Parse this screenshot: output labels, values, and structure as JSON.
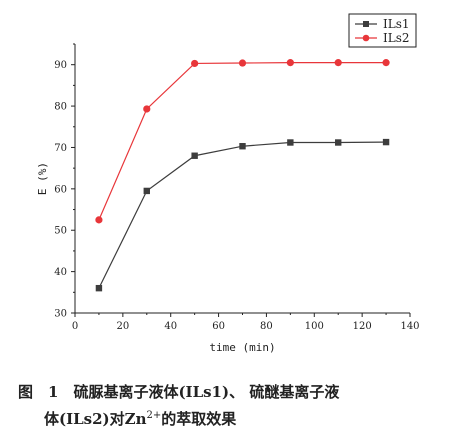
{
  "chart_data": {
    "type": "line",
    "xlabel": "time (min)",
    "ylabel": "E (%)",
    "xlim": [
      0,
      140
    ],
    "ylim": [
      30,
      95
    ],
    "xticks": [
      0,
      20,
      40,
      60,
      80,
      100,
      120,
      140
    ],
    "yticks": [
      30,
      40,
      50,
      60,
      70,
      80,
      90
    ],
    "grid": false,
    "legend_position": "top-right",
    "series": [
      {
        "name": "ILs1",
        "color": "#3d3d3d",
        "marker": "square",
        "x": [
          10,
          30,
          50,
          70,
          90,
          110,
          130
        ],
        "y": [
          36,
          59.5,
          68,
          70.3,
          71.2,
          71.2,
          71.3
        ]
      },
      {
        "name": "ILs2",
        "color": "#e8363a",
        "marker": "circle",
        "x": [
          10,
          30,
          50,
          70,
          90,
          110,
          130
        ],
        "y": [
          52.5,
          79.3,
          90.3,
          90.4,
          90.5,
          90.5,
          90.5
        ]
      }
    ]
  },
  "caption": {
    "fig_label": "图　1",
    "line1_text": "硫脲基离子液体(ILs1)、 硫醚基离子液",
    "line2_before": "体(ILs2)对Zn",
    "line2_sup": "2+",
    "line2_after": "的萃取效果"
  }
}
